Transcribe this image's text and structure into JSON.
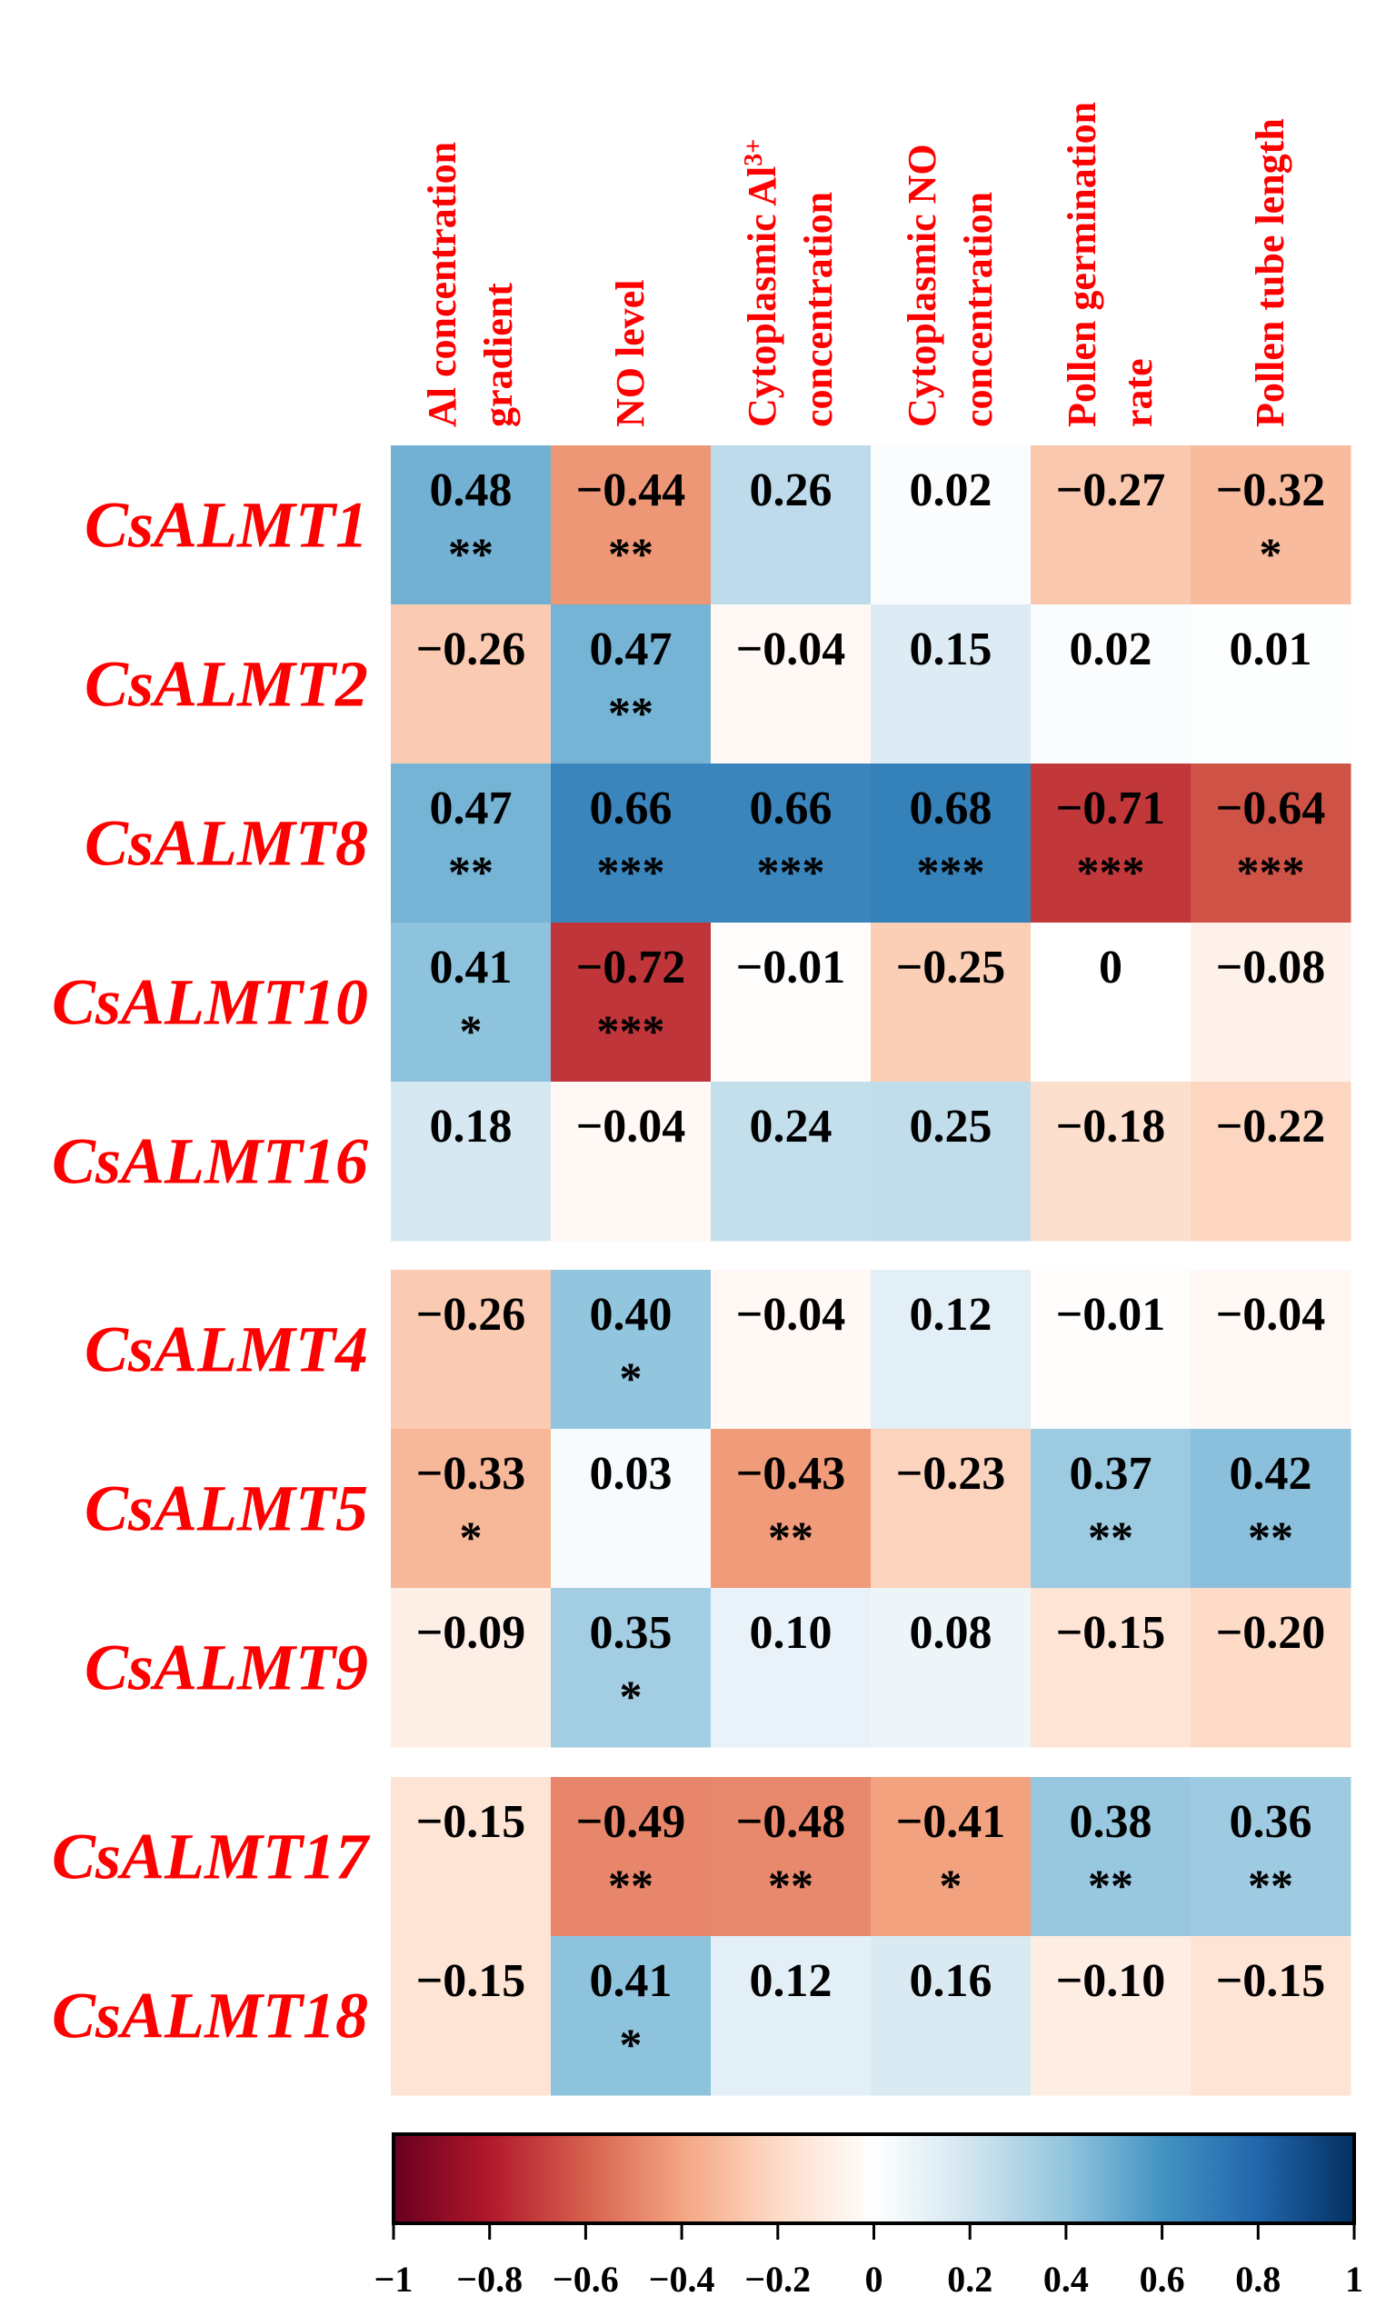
{
  "chart_data": {
    "type": "heatmap",
    "columns": [
      {
        "lines": [
          "Al concentration",
          "gradient"
        ]
      },
      {
        "lines": [
          "NO level"
        ]
      },
      {
        "lines": [
          "Cytoplasmic Al",
          "concentration"
        ],
        "superscript": "3+"
      },
      {
        "lines": [
          "Cytoplasmic NO",
          "concentration"
        ]
      },
      {
        "lines": [
          "Pollen germination",
          "rate"
        ]
      },
      {
        "lines": [
          "Pollen tube length"
        ]
      }
    ],
    "groups": [
      {
        "rows": [
          {
            "label": "CsALMT1",
            "values": [
              0.48,
              -0.44,
              0.26,
              0.02,
              -0.27,
              -0.32
            ],
            "display": [
              "0.48",
              "−0.44",
              "0.26",
              "0.02",
              "−0.27",
              "−0.32"
            ],
            "sig": [
              "**",
              "**",
              "",
              "",
              "",
              "*"
            ]
          },
          {
            "label": "CsALMT2",
            "values": [
              -0.26,
              0.47,
              -0.04,
              0.15,
              0.02,
              0.01
            ],
            "display": [
              "−0.26",
              "0.47",
              "−0.04",
              "0.15",
              "0.02",
              "0.01"
            ],
            "sig": [
              "",
              "**",
              "",
              "",
              "",
              ""
            ]
          },
          {
            "label": "CsALMT8",
            "values": [
              0.47,
              0.66,
              0.66,
              0.68,
              -0.71,
              -0.64
            ],
            "display": [
              "0.47",
              "0.66",
              "0.66",
              "0.68",
              "−0.71",
              "−0.64"
            ],
            "sig": [
              "**",
              "***",
              "***",
              "***",
              "***",
              "***"
            ]
          },
          {
            "label": "CsALMT10",
            "values": [
              0.41,
              -0.72,
              -0.01,
              -0.25,
              0,
              -0.08
            ],
            "display": [
              "0.41",
              "−0.72",
              "−0.01",
              "−0.25",
              "0",
              "−0.08"
            ],
            "sig": [
              "*",
              "***",
              "",
              "",
              "",
              ""
            ]
          },
          {
            "label": "CsALMT16",
            "values": [
              0.18,
              -0.04,
              0.24,
              0.25,
              -0.18,
              -0.22
            ],
            "display": [
              "0.18",
              "−0.04",
              "0.24",
              "0.25",
              "−0.18",
              "−0.22"
            ],
            "sig": [
              "",
              "",
              "",
              "",
              "",
              ""
            ]
          }
        ]
      },
      {
        "rows": [
          {
            "label": "CsALMT4",
            "values": [
              -0.26,
              0.4,
              -0.04,
              0.12,
              -0.01,
              -0.04
            ],
            "display": [
              "−0.26",
              "0.40",
              "−0.04",
              "0.12",
              "−0.01",
              "−0.04"
            ],
            "sig": [
              "",
              "*",
              "",
              "",
              "",
              ""
            ]
          },
          {
            "label": "CsALMT5",
            "values": [
              -0.33,
              0.03,
              -0.43,
              -0.23,
              0.37,
              0.42
            ],
            "display": [
              "−0.33",
              "0.03",
              "−0.43",
              "−0.23",
              "0.37",
              "0.42"
            ],
            "sig": [
              "*",
              "",
              "**",
              "",
              "**",
              "**"
            ]
          },
          {
            "label": "CsALMT9",
            "values": [
              -0.09,
              0.35,
              0.1,
              0.08,
              -0.15,
              -0.2
            ],
            "display": [
              "−0.09",
              "0.35",
              "0.10",
              "0.08",
              "−0.15",
              "−0.20"
            ],
            "sig": [
              "",
              "*",
              "",
              "",
              "",
              ""
            ]
          }
        ]
      },
      {
        "rows": [
          {
            "label": "CsALMT17",
            "values": [
              -0.15,
              -0.49,
              -0.48,
              -0.41,
              0.38,
              0.36
            ],
            "display": [
              "−0.15",
              "−0.49",
              "−0.48",
              "−0.41",
              "0.38",
              "0.36"
            ],
            "sig": [
              "",
              "**",
              "**",
              "*",
              "**",
              "**"
            ]
          },
          {
            "label": "CsALMT18",
            "values": [
              -0.15,
              0.41,
              0.12,
              0.16,
              -0.1,
              -0.15
            ],
            "display": [
              "−0.15",
              "0.41",
              "0.12",
              "0.16",
              "−0.10",
              "−0.15"
            ],
            "sig": [
              "",
              "*",
              "",
              "",
              "",
              ""
            ]
          }
        ]
      }
    ],
    "colorbar": {
      "range": [
        -1,
        1
      ],
      "ticks": [
        -1,
        -0.8,
        -0.6,
        -0.4,
        -0.2,
        0,
        0.2,
        0.4,
        0.6,
        0.8,
        1
      ],
      "tick_labels": [
        "−1",
        "−0.8",
        "−0.6",
        "−0.4",
        "−0.2",
        "0",
        "0.2",
        "0.4",
        "0.6",
        "0.8",
        "1"
      ],
      "colormap": "RdBu",
      "stops": [
        "#67001f",
        "#b2182b",
        "#d6604d",
        "#f4a582",
        "#fddbc7",
        "#ffffff",
        "#d1e5f0",
        "#92c5de",
        "#4393c3",
        "#2166ac",
        "#053061"
      ]
    },
    "label_color": "#ff0000"
  }
}
